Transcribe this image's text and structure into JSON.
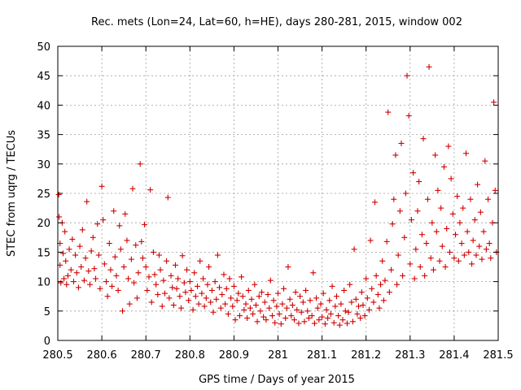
{
  "chart_data": {
    "type": "scatter",
    "title": "Rec. mets (Lon=24, Lat=60, h=HE), days 280-281, 2015, window 002",
    "xlabel": "GPS time / Days of year 2015",
    "ylabel": "STEC from uqrg / TECUs",
    "xlim": [
      280.5,
      281.5
    ],
    "ylim": [
      0,
      50
    ],
    "xticks": [
      "280.5",
      "280.6",
      "280.7",
      "280.8",
      "280.9",
      "281",
      "281.1",
      "281.2",
      "281.3",
      "281.4",
      "281.5"
    ],
    "yticks": [
      "0",
      "5",
      "10",
      "15",
      "20",
      "25",
      "30",
      "35",
      "40",
      "45",
      "50"
    ],
    "grid": true,
    "legend": "none",
    "marker_color": "#d00000",
    "marker": "plus",
    "points": [
      [
        280.502,
        24.8
      ],
      [
        280.503,
        21.0
      ],
      [
        280.505,
        16.5
      ],
      [
        280.505,
        12.8
      ],
      [
        280.507,
        9.8
      ],
      [
        280.51,
        20.0
      ],
      [
        280.512,
        14.8
      ],
      [
        280.514,
        10.5
      ],
      [
        280.516,
        18.5
      ],
      [
        280.518,
        13.5
      ],
      [
        280.52,
        9.5
      ],
      [
        280.523,
        11.0
      ],
      [
        280.526,
        15.5
      ],
      [
        280.53,
        12.0
      ],
      [
        280.533,
        17.2
      ],
      [
        280.536,
        10.0
      ],
      [
        280.54,
        14.5
      ],
      [
        280.543,
        11.5
      ],
      [
        280.547,
        9.0
      ],
      [
        280.55,
        16.0
      ],
      [
        280.553,
        12.5
      ],
      [
        280.556,
        18.8
      ],
      [
        280.56,
        10.2
      ],
      [
        280.563,
        14.0
      ],
      [
        280.566,
        23.6
      ],
      [
        280.57,
        11.8
      ],
      [
        280.573,
        9.5
      ],
      [
        280.576,
        15.2
      ],
      [
        280.58,
        17.5
      ],
      [
        280.583,
        12.2
      ],
      [
        280.586,
        10.5
      ],
      [
        280.59,
        19.8
      ],
      [
        280.593,
        14.5
      ],
      [
        280.596,
        8.8
      ],
      [
        280.6,
        26.2
      ],
      [
        280.603,
        20.5
      ],
      [
        280.606,
        13.0
      ],
      [
        280.61,
        10.0
      ],
      [
        280.613,
        7.5
      ],
      [
        280.617,
        16.5
      ],
      [
        280.62,
        12.0
      ],
      [
        280.623,
        9.2
      ],
      [
        280.627,
        22.0
      ],
      [
        280.63,
        14.2
      ],
      [
        280.633,
        11.0
      ],
      [
        280.637,
        8.5
      ],
      [
        280.64,
        19.5
      ],
      [
        280.643,
        15.5
      ],
      [
        280.647,
        5.0
      ],
      [
        280.65,
        12.5
      ],
      [
        280.653,
        21.5
      ],
      [
        280.657,
        17.0
      ],
      [
        280.66,
        10.5
      ],
      [
        280.663,
        6.2
      ],
      [
        280.667,
        13.8
      ],
      [
        280.67,
        25.8
      ],
      [
        280.673,
        9.8
      ],
      [
        280.677,
        16.2
      ],
      [
        280.68,
        7.2
      ],
      [
        280.683,
        11.5
      ],
      [
        280.687,
        30.0
      ],
      [
        280.69,
        16.8
      ],
      [
        280.693,
        14.0
      ],
      [
        280.697,
        19.7
      ],
      [
        280.7,
        12.5
      ],
      [
        280.703,
        8.5
      ],
      [
        280.707,
        10.8
      ],
      [
        280.71,
        25.6
      ],
      [
        280.713,
        6.5
      ],
      [
        280.717,
        15.0
      ],
      [
        280.72,
        11.2
      ],
      [
        280.723,
        9.5
      ],
      [
        280.727,
        7.8
      ],
      [
        280.73,
        14.5
      ],
      [
        280.733,
        12.0
      ],
      [
        280.737,
        5.8
      ],
      [
        280.74,
        10.2
      ],
      [
        280.743,
        8.0
      ],
      [
        280.747,
        13.5
      ],
      [
        280.75,
        24.3
      ],
      [
        280.753,
        7.2
      ],
      [
        280.757,
        11.0
      ],
      [
        280.76,
        9.0
      ],
      [
        280.763,
        6.0
      ],
      [
        280.767,
        12.8
      ],
      [
        280.77,
        8.8
      ],
      [
        280.773,
        10.5
      ],
      [
        280.777,
        7.5
      ],
      [
        280.78,
        5.5
      ],
      [
        280.783,
        14.4
      ],
      [
        280.787,
        9.8
      ],
      [
        280.79,
        8.2
      ],
      [
        280.793,
        12.0
      ],
      [
        280.797,
        6.8
      ],
      [
        280.8,
        10.0
      ],
      [
        280.803,
        8.5
      ],
      [
        280.807,
        5.2
      ],
      [
        280.81,
        11.5
      ],
      [
        280.813,
        7.5
      ],
      [
        280.817,
        9.2
      ],
      [
        280.82,
        6.2
      ],
      [
        280.823,
        13.5
      ],
      [
        280.827,
        8.0
      ],
      [
        280.83,
        10.5
      ],
      [
        280.833,
        5.8
      ],
      [
        280.837,
        7.2
      ],
      [
        280.84,
        9.5
      ],
      [
        280.843,
        12.5
      ],
      [
        280.847,
        6.5
      ],
      [
        280.85,
        8.5
      ],
      [
        280.853,
        4.8
      ],
      [
        280.857,
        10.0
      ],
      [
        280.86,
        7.0
      ],
      [
        280.863,
        14.5
      ],
      [
        280.867,
        9.0
      ],
      [
        280.87,
        5.5
      ],
      [
        280.873,
        7.8
      ],
      [
        280.877,
        11.2
      ],
      [
        280.88,
        6.2
      ],
      [
        280.883,
        8.8
      ],
      [
        280.887,
        4.5
      ],
      [
        280.89,
        10.5
      ],
      [
        280.893,
        7.2
      ],
      [
        280.897,
        5.8
      ],
      [
        280.9,
        9.2
      ],
      [
        280.903,
        3.5
      ],
      [
        280.907,
        6.8
      ],
      [
        280.91,
        8.0
      ],
      [
        280.913,
        4.2
      ],
      [
        280.917,
        10.8
      ],
      [
        280.92,
        7.5
      ],
      [
        280.923,
        5.2
      ],
      [
        280.927,
        6.2
      ],
      [
        280.93,
        3.8
      ],
      [
        280.933,
        8.5
      ],
      [
        280.937,
        5.5
      ],
      [
        280.94,
        7.0
      ],
      [
        280.943,
        4.5
      ],
      [
        280.947,
        9.5
      ],
      [
        280.95,
        6.0
      ],
      [
        280.953,
        3.2
      ],
      [
        280.957,
        7.5
      ],
      [
        280.96,
        5.0
      ],
      [
        280.963,
        8.2
      ],
      [
        280.967,
        4.0
      ],
      [
        280.97,
        6.5
      ],
      [
        280.973,
        3.5
      ],
      [
        280.977,
        7.8
      ],
      [
        280.98,
        5.5
      ],
      [
        280.983,
        10.2
      ],
      [
        280.987,
        4.2
      ],
      [
        280.99,
        6.8
      ],
      [
        280.993,
        3.0
      ],
      [
        280.997,
        5.8
      ],
      [
        281.0,
        8.0
      ],
      [
        281.003,
        4.5
      ],
      [
        281.007,
        2.8
      ],
      [
        281.01,
        6.2
      ],
      [
        281.013,
        8.8
      ],
      [
        281.017,
        3.8
      ],
      [
        281.02,
        5.5
      ],
      [
        281.023,
        12.5
      ],
      [
        281.027,
        7.0
      ],
      [
        281.03,
        4.2
      ],
      [
        281.033,
        6.0
      ],
      [
        281.037,
        3.5
      ],
      [
        281.04,
        8.2
      ],
      [
        281.043,
        5.2
      ],
      [
        281.047,
        2.9
      ],
      [
        281.05,
        7.5
      ],
      [
        281.053,
        4.8
      ],
      [
        281.057,
        6.5
      ],
      [
        281.06,
        3.2
      ],
      [
        281.063,
        8.5
      ],
      [
        281.067,
        5.0
      ],
      [
        281.07,
        3.8
      ],
      [
        281.073,
        6.8
      ],
      [
        281.077,
        4.2
      ],
      [
        281.08,
        11.5
      ],
      [
        281.083,
        2.9
      ],
      [
        281.087,
        7.2
      ],
      [
        281.09,
        5.5
      ],
      [
        281.093,
        3.5
      ],
      [
        281.097,
        6.2
      ],
      [
        281.1,
        4.0
      ],
      [
        281.103,
        8.0
      ],
      [
        281.107,
        2.8
      ],
      [
        281.11,
        5.2
      ],
      [
        281.113,
        3.8
      ],
      [
        281.117,
        6.8
      ],
      [
        281.12,
        4.5
      ],
      [
        281.123,
        9.2
      ],
      [
        281.127,
        3.0
      ],
      [
        281.13,
        5.8
      ],
      [
        281.133,
        7.5
      ],
      [
        281.137,
        4.2
      ],
      [
        281.14,
        2.6
      ],
      [
        281.143,
        6.2
      ],
      [
        281.147,
        3.5
      ],
      [
        281.15,
        8.5
      ],
      [
        281.153,
        5.0
      ],
      [
        281.157,
        2.9
      ],
      [
        281.16,
        4.8
      ],
      [
        281.163,
        9.5
      ],
      [
        281.167,
        6.5
      ],
      [
        281.17,
        3.2
      ],
      [
        281.173,
        15.5
      ],
      [
        281.177,
        7.0
      ],
      [
        281.18,
        4.5
      ],
      [
        281.183,
        5.8
      ],
      [
        281.187,
        3.8
      ],
      [
        281.19,
        8.2
      ],
      [
        281.193,
        6.0
      ],
      [
        281.197,
        4.2
      ],
      [
        281.2,
        10.5
      ],
      [
        281.203,
        7.2
      ],
      [
        281.207,
        5.2
      ],
      [
        281.21,
        17.0
      ],
      [
        281.213,
        8.8
      ],
      [
        281.217,
        6.5
      ],
      [
        281.22,
        23.5
      ],
      [
        281.223,
        11.0
      ],
      [
        281.227,
        7.8
      ],
      [
        281.23,
        5.5
      ],
      [
        281.233,
        9.5
      ],
      [
        281.237,
        13.5
      ],
      [
        281.24,
        6.8
      ],
      [
        281.243,
        10.2
      ],
      [
        281.247,
        16.8
      ],
      [
        281.25,
        38.8
      ],
      [
        281.253,
        8.2
      ],
      [
        281.257,
        12.0
      ],
      [
        281.26,
        19.8
      ],
      [
        281.263,
        24.0
      ],
      [
        281.267,
        31.5
      ],
      [
        281.27,
        9.5
      ],
      [
        281.273,
        14.5
      ],
      [
        281.277,
        22.0
      ],
      [
        281.28,
        33.5
      ],
      [
        281.283,
        11.0
      ],
      [
        281.287,
        17.5
      ],
      [
        281.29,
        25.0
      ],
      [
        281.293,
        45.0
      ],
      [
        281.297,
        38.2
      ],
      [
        281.3,
        13.0
      ],
      [
        281.303,
        20.5
      ],
      [
        281.307,
        28.5
      ],
      [
        281.31,
        10.5
      ],
      [
        281.313,
        15.5
      ],
      [
        281.317,
        22.0
      ],
      [
        281.32,
        27.0
      ],
      [
        281.323,
        12.5
      ],
      [
        281.327,
        18.0
      ],
      [
        281.33,
        34.3
      ],
      [
        281.333,
        11.0
      ],
      [
        281.337,
        16.5
      ],
      [
        281.34,
        24.0
      ],
      [
        281.343,
        46.5
      ],
      [
        281.347,
        14.0
      ],
      [
        281.35,
        20.0
      ],
      [
        281.353,
        12.0
      ],
      [
        281.357,
        31.5
      ],
      [
        281.36,
        18.5
      ],
      [
        281.363,
        25.5
      ],
      [
        281.367,
        13.5
      ],
      [
        281.37,
        22.5
      ],
      [
        281.373,
        16.0
      ],
      [
        281.377,
        29.5
      ],
      [
        281.38,
        12.5
      ],
      [
        281.383,
        19.0
      ],
      [
        281.387,
        33.0
      ],
      [
        281.39,
        15.0
      ],
      [
        281.393,
        27.5
      ],
      [
        281.397,
        21.5
      ],
      [
        281.4,
        14.0
      ],
      [
        281.403,
        18.0
      ],
      [
        281.407,
        24.5
      ],
      [
        281.41,
        13.5
      ],
      [
        281.413,
        20.0
      ],
      [
        281.417,
        16.5
      ],
      [
        281.42,
        22.5
      ],
      [
        281.423,
        14.5
      ],
      [
        281.427,
        31.8
      ],
      [
        281.43,
        18.5
      ],
      [
        281.433,
        15.0
      ],
      [
        281.437,
        24.0
      ],
      [
        281.44,
        13.0
      ],
      [
        281.443,
        17.0
      ],
      [
        281.447,
        20.5
      ],
      [
        281.45,
        14.5
      ],
      [
        281.453,
        26.5
      ],
      [
        281.457,
        16.0
      ],
      [
        281.46,
        21.8
      ],
      [
        281.463,
        13.8
      ],
      [
        281.467,
        18.5
      ],
      [
        281.47,
        30.5
      ],
      [
        281.473,
        15.5
      ],
      [
        281.477,
        24.0
      ],
      [
        281.48,
        16.5
      ],
      [
        281.483,
        14.0
      ],
      [
        281.487,
        20.0
      ],
      [
        281.49,
        40.5
      ],
      [
        281.493,
        25.5
      ],
      [
        281.496,
        15.0
      ]
    ]
  }
}
